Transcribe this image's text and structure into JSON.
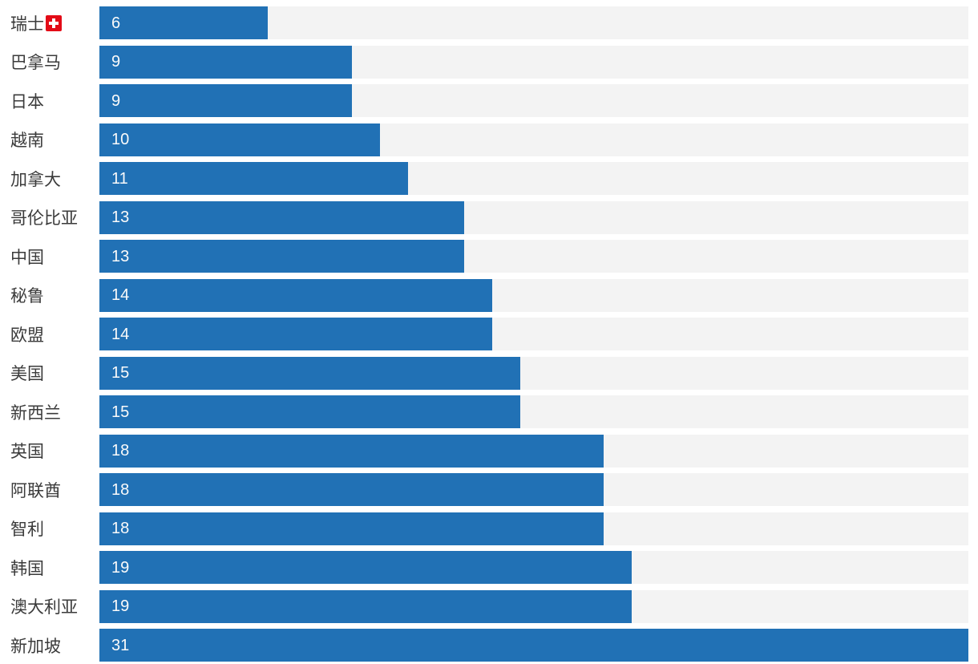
{
  "chart_data": {
    "type": "bar",
    "orientation": "horizontal",
    "title": "",
    "xlabel": "",
    "ylabel": "",
    "xlim": [
      0,
      31
    ],
    "grid": false,
    "legend": false,
    "value_labels": "inside-bar-left",
    "categories": [
      "瑞士",
      "巴拿马",
      "日本",
      "越南",
      "加拿大",
      "哥伦比亚",
      "中国",
      "秘鲁",
      "欧盟",
      "美国",
      "新西兰",
      "英国",
      "阿联酋",
      "智利",
      "韩国",
      "澳大利亚",
      "新加坡"
    ],
    "values": [
      6,
      9,
      9,
      10,
      11,
      13,
      13,
      14,
      14,
      15,
      15,
      18,
      18,
      18,
      19,
      19,
      31
    ],
    "category_icons": [
      {
        "index": 0,
        "icon": "swiss-flag-icon"
      }
    ]
  },
  "colors": {
    "bar": "#2171b5",
    "track": "#f3f3f3",
    "label_text": "#3b3b3b",
    "value_text": "#fafafa",
    "flag_red": "#e30b17",
    "flag_cross": "#ffffff",
    "background": "#ffffff"
  }
}
